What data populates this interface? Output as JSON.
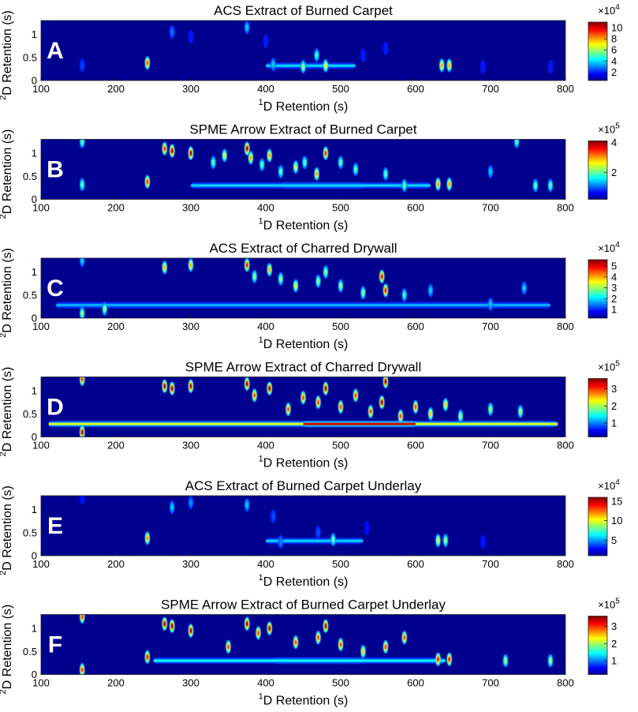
{
  "colors": {
    "background": "#00008f",
    "colormap": "jet",
    "frame": "#222222"
  },
  "chart_data": [
    {
      "type": "heatmap",
      "letter": "A",
      "title": "ACS Extract of Burned Carpet",
      "xlabel": "D Retention (s)",
      "xlabel_superscript": "1",
      "ylabel": "D Retention (s)",
      "ylabel_superscript": "2",
      "xlim": [
        100,
        800
      ],
      "ylim": [
        0,
        1.3
      ],
      "xticks": [
        "100",
        "200",
        "300",
        "400",
        "500",
        "600",
        "700",
        "800"
      ],
      "yticks": [
        "0",
        "0.5",
        "1"
      ],
      "colorbar": {
        "exponent_base": "×10",
        "exponent": "4",
        "ticks": [
          "2",
          "4",
          "6",
          "8",
          "10"
        ],
        "range": [
          0.5,
          11
        ]
      },
      "peaks": [
        {
          "x": 155,
          "y": 0.33,
          "v": 2.5
        },
        {
          "x": 242,
          "y": 0.38,
          "v": 9
        },
        {
          "x": 275,
          "y": 1.05,
          "v": 3
        },
        {
          "x": 300,
          "y": 0.95,
          "v": 2
        },
        {
          "x": 375,
          "y": 1.15,
          "v": 4
        },
        {
          "x": 400,
          "y": 0.85,
          "v": 2
        },
        {
          "x": 410,
          "y": 0.35,
          "v": 4
        },
        {
          "x": 450,
          "y": 0.3,
          "v": 6
        },
        {
          "x": 468,
          "y": 0.55,
          "v": 5
        },
        {
          "x": 480,
          "y": 0.32,
          "v": 7
        },
        {
          "x": 530,
          "y": 0.55,
          "v": 2
        },
        {
          "x": 560,
          "y": 0.7,
          "v": 2
        },
        {
          "x": 635,
          "y": 0.33,
          "v": 8
        },
        {
          "x": 645,
          "y": 0.33,
          "v": 8
        },
        {
          "x": 690,
          "y": 0.3,
          "v": 2
        },
        {
          "x": 780,
          "y": 0.3,
          "v": 2
        }
      ],
      "ridges": [
        {
          "x1": 400,
          "x2": 520,
          "y": 0.32,
          "v": 4
        }
      ]
    },
    {
      "type": "heatmap",
      "letter": "B",
      "title": "SPME Arrow Extract of Burned Carpet",
      "xlabel": "D Retention (s)",
      "xlabel_superscript": "1",
      "ylabel": "D Retention (s)",
      "ylabel_superscript": "2",
      "xlim": [
        100,
        800
      ],
      "ylim": [
        0,
        1.3
      ],
      "xticks": [
        "100",
        "200",
        "300",
        "400",
        "500",
        "600",
        "700",
        "800"
      ],
      "yticks": [
        "0",
        "0.5",
        "1"
      ],
      "colorbar": {
        "exponent_base": "×10",
        "exponent": "5",
        "ticks": [
          "2",
          "4"
        ],
        "range": [
          0.2,
          4.1
        ]
      },
      "peaks": [
        {
          "x": 155,
          "y": 0.32,
          "v": 2
        },
        {
          "x": 155,
          "y": 1.25,
          "v": 2
        },
        {
          "x": 242,
          "y": 0.38,
          "v": 3.5
        },
        {
          "x": 265,
          "y": 1.1,
          "v": 3.5
        },
        {
          "x": 275,
          "y": 1.05,
          "v": 4
        },
        {
          "x": 300,
          "y": 1.0,
          "v": 4
        },
        {
          "x": 330,
          "y": 0.8,
          "v": 2
        },
        {
          "x": 345,
          "y": 0.95,
          "v": 2.5
        },
        {
          "x": 375,
          "y": 1.1,
          "v": 4
        },
        {
          "x": 380,
          "y": 0.9,
          "v": 3
        },
        {
          "x": 395,
          "y": 0.75,
          "v": 2
        },
        {
          "x": 405,
          "y": 0.95,
          "v": 3
        },
        {
          "x": 420,
          "y": 0.6,
          "v": 2
        },
        {
          "x": 440,
          "y": 0.7,
          "v": 2.5
        },
        {
          "x": 452,
          "y": 0.8,
          "v": 2
        },
        {
          "x": 468,
          "y": 0.55,
          "v": 3
        },
        {
          "x": 480,
          "y": 1.0,
          "v": 3.5
        },
        {
          "x": 500,
          "y": 0.8,
          "v": 2
        },
        {
          "x": 520,
          "y": 0.65,
          "v": 2
        },
        {
          "x": 560,
          "y": 0.55,
          "v": 2
        },
        {
          "x": 585,
          "y": 0.3,
          "v": 2
        },
        {
          "x": 630,
          "y": 0.33,
          "v": 3
        },
        {
          "x": 645,
          "y": 0.33,
          "v": 3
        },
        {
          "x": 700,
          "y": 0.6,
          "v": 1.5
        },
        {
          "x": 735,
          "y": 1.25,
          "v": 2
        },
        {
          "x": 760,
          "y": 0.3,
          "v": 2
        },
        {
          "x": 780,
          "y": 0.3,
          "v": 2
        }
      ],
      "ridges": [
        {
          "x1": 420,
          "x2": 530,
          "y": 0.3,
          "v": 4
        },
        {
          "x1": 300,
          "x2": 620,
          "y": 0.3,
          "v": 1.5
        }
      ]
    },
    {
      "type": "heatmap",
      "letter": "C",
      "title": "ACS Extract of Charred Drywall",
      "xlabel": "D Retention (s)",
      "xlabel_superscript": "1",
      "ylabel": "D Retention (s)",
      "ylabel_superscript": "2",
      "xlim": [
        100,
        800
      ],
      "ylim": [
        0,
        1.3
      ],
      "xticks": [
        "100",
        "200",
        "300",
        "400",
        "500",
        "600",
        "700",
        "800"
      ],
      "yticks": [
        "0",
        "0.5",
        "1"
      ],
      "colorbar": {
        "exponent_base": "×10",
        "exponent": "4",
        "ticks": [
          "1",
          "2",
          "3",
          "4",
          "5"
        ],
        "range": [
          0.2,
          5.6
        ]
      },
      "peaks": [
        {
          "x": 155,
          "y": 0.1,
          "v": 3
        },
        {
          "x": 155,
          "y": 1.25,
          "v": 2
        },
        {
          "x": 185,
          "y": 0.2,
          "v": 3
        },
        {
          "x": 265,
          "y": 1.1,
          "v": 4
        },
        {
          "x": 300,
          "y": 1.15,
          "v": 4
        },
        {
          "x": 375,
          "y": 1.15,
          "v": 5
        },
        {
          "x": 385,
          "y": 0.9,
          "v": 3
        },
        {
          "x": 405,
          "y": 1.05,
          "v": 4
        },
        {
          "x": 420,
          "y": 0.85,
          "v": 3
        },
        {
          "x": 440,
          "y": 0.7,
          "v": 3.5
        },
        {
          "x": 470,
          "y": 0.8,
          "v": 3
        },
        {
          "x": 480,
          "y": 1.0,
          "v": 3
        },
        {
          "x": 500,
          "y": 0.7,
          "v": 3
        },
        {
          "x": 530,
          "y": 0.55,
          "v": 3
        },
        {
          "x": 555,
          "y": 0.9,
          "v": 5
        },
        {
          "x": 560,
          "y": 0.6,
          "v": 5
        },
        {
          "x": 585,
          "y": 0.5,
          "v": 2.5
        },
        {
          "x": 620,
          "y": 0.6,
          "v": 2
        },
        {
          "x": 700,
          "y": 0.3,
          "v": 2
        },
        {
          "x": 745,
          "y": 0.65,
          "v": 2
        }
      ],
      "ridges": [
        {
          "x1": 120,
          "x2": 780,
          "y": 0.28,
          "v": 1.8
        }
      ]
    },
    {
      "type": "heatmap",
      "letter": "D",
      "title": "SPME Arrow Extract of Charred Drywall",
      "xlabel": "D Retention (s)",
      "xlabel_superscript": "1",
      "ylabel": "D Retention (s)",
      "ylabel_superscript": "2",
      "xlim": [
        100,
        800
      ],
      "ylim": [
        0,
        1.3
      ],
      "xticks": [
        "100",
        "200",
        "300",
        "400",
        "500",
        "600",
        "700",
        "800"
      ],
      "yticks": [
        "0",
        "0.5",
        "1"
      ],
      "colorbar": {
        "exponent_base": "×10",
        "exponent": "5",
        "ticks": [
          "1",
          "2",
          "3"
        ],
        "range": [
          0.2,
          3.6
        ]
      },
      "peaks": [
        {
          "x": 155,
          "y": 0.1,
          "v": 3.5
        },
        {
          "x": 155,
          "y": 1.25,
          "v": 3
        },
        {
          "x": 265,
          "y": 1.1,
          "v": 3.5
        },
        {
          "x": 275,
          "y": 1.05,
          "v": 3.5
        },
        {
          "x": 300,
          "y": 1.1,
          "v": 3.5
        },
        {
          "x": 375,
          "y": 1.15,
          "v": 3.5
        },
        {
          "x": 385,
          "y": 0.9,
          "v": 3
        },
        {
          "x": 405,
          "y": 1.05,
          "v": 3.5
        },
        {
          "x": 430,
          "y": 0.6,
          "v": 3
        },
        {
          "x": 450,
          "y": 0.85,
          "v": 3
        },
        {
          "x": 470,
          "y": 0.75,
          "v": 3
        },
        {
          "x": 480,
          "y": 1.05,
          "v": 3.5
        },
        {
          "x": 500,
          "y": 0.65,
          "v": 3
        },
        {
          "x": 520,
          "y": 0.9,
          "v": 3
        },
        {
          "x": 540,
          "y": 0.55,
          "v": 3
        },
        {
          "x": 555,
          "y": 0.75,
          "v": 3.5
        },
        {
          "x": 560,
          "y": 1.2,
          "v": 3.5
        },
        {
          "x": 580,
          "y": 0.45,
          "v": 3
        },
        {
          "x": 600,
          "y": 0.65,
          "v": 3
        },
        {
          "x": 620,
          "y": 0.5,
          "v": 2.5
        },
        {
          "x": 640,
          "y": 0.7,
          "v": 2.5
        },
        {
          "x": 660,
          "y": 0.45,
          "v": 2
        },
        {
          "x": 700,
          "y": 0.6,
          "v": 2
        },
        {
          "x": 740,
          "y": 0.55,
          "v": 2
        }
      ],
      "ridges": [
        {
          "x1": 110,
          "x2": 790,
          "y": 0.28,
          "v": 2.2
        },
        {
          "x1": 450,
          "x2": 600,
          "y": 0.28,
          "v": 3.3
        }
      ]
    },
    {
      "type": "heatmap",
      "letter": "E",
      "title": "ACS Extract of Burned Carpet Underlay",
      "xlabel": "D Retention (s)",
      "xlabel_superscript": "1",
      "ylabel": "D Retention (s)",
      "ylabel_superscript": "2",
      "xlim": [
        100,
        800
      ],
      "ylim": [
        0,
        1.3
      ],
      "xticks": [
        "100",
        "200",
        "300",
        "400",
        "500",
        "600",
        "700",
        "800"
      ],
      "yticks": [
        "0",
        "0.5",
        "1"
      ],
      "colorbar": {
        "exponent_base": "×10",
        "exponent": "4",
        "ticks": [
          "5",
          "10",
          "15"
        ],
        "range": [
          1,
          16
        ]
      },
      "peaks": [
        {
          "x": 155,
          "y": 1.25,
          "v": 3
        },
        {
          "x": 242,
          "y": 0.38,
          "v": 12
        },
        {
          "x": 275,
          "y": 1.05,
          "v": 6
        },
        {
          "x": 300,
          "y": 1.15,
          "v": 5
        },
        {
          "x": 375,
          "y": 1.1,
          "v": 6
        },
        {
          "x": 410,
          "y": 0.85,
          "v": 4
        },
        {
          "x": 420,
          "y": 0.3,
          "v": 5
        },
        {
          "x": 470,
          "y": 0.5,
          "v": 4
        },
        {
          "x": 490,
          "y": 0.35,
          "v": 8
        },
        {
          "x": 535,
          "y": 0.6,
          "v": 3
        },
        {
          "x": 630,
          "y": 0.33,
          "v": 10
        },
        {
          "x": 640,
          "y": 0.33,
          "v": 9
        },
        {
          "x": 690,
          "y": 0.3,
          "v": 3
        }
      ],
      "ridges": [
        {
          "x1": 400,
          "x2": 530,
          "y": 0.32,
          "v": 6
        }
      ]
    },
    {
      "type": "heatmap",
      "letter": "F",
      "title": "SPME Arrow Extract of Burned Carpet Underlay",
      "xlabel": "D Retention (s)",
      "xlabel_superscript": "1",
      "ylabel": "D Retention (s)",
      "ylabel_superscript": "2",
      "xlim": [
        100,
        800
      ],
      "ylim": [
        0,
        1.3
      ],
      "xticks": [
        "100",
        "200",
        "300",
        "400",
        "500",
        "600",
        "700",
        "800"
      ],
      "yticks": [
        "0",
        "0.5",
        "1"
      ],
      "colorbar": {
        "exponent_base": "×10",
        "exponent": "5",
        "ticks": [
          "1",
          "2",
          "3"
        ],
        "range": [
          0.2,
          3.6
        ]
      },
      "peaks": [
        {
          "x": 155,
          "y": 0.1,
          "v": 3
        },
        {
          "x": 155,
          "y": 1.25,
          "v": 3
        },
        {
          "x": 242,
          "y": 0.38,
          "v": 3.2
        },
        {
          "x": 265,
          "y": 1.1,
          "v": 3.5
        },
        {
          "x": 275,
          "y": 1.05,
          "v": 3.5
        },
        {
          "x": 300,
          "y": 0.95,
          "v": 3.5
        },
        {
          "x": 350,
          "y": 0.6,
          "v": 3
        },
        {
          "x": 375,
          "y": 1.1,
          "v": 3.5
        },
        {
          "x": 390,
          "y": 0.9,
          "v": 3
        },
        {
          "x": 405,
          "y": 1.0,
          "v": 3.5
        },
        {
          "x": 440,
          "y": 0.7,
          "v": 3
        },
        {
          "x": 470,
          "y": 0.8,
          "v": 3
        },
        {
          "x": 480,
          "y": 1.05,
          "v": 3.5
        },
        {
          "x": 500,
          "y": 0.65,
          "v": 3
        },
        {
          "x": 530,
          "y": 0.5,
          "v": 2.5
        },
        {
          "x": 560,
          "y": 0.6,
          "v": 3
        },
        {
          "x": 585,
          "y": 0.8,
          "v": 3
        },
        {
          "x": 630,
          "y": 0.33,
          "v": 3.2
        },
        {
          "x": 645,
          "y": 0.33,
          "v": 3.2
        },
        {
          "x": 720,
          "y": 0.3,
          "v": 2
        },
        {
          "x": 780,
          "y": 0.3,
          "v": 2
        }
      ],
      "ridges": [
        {
          "x1": 410,
          "x2": 530,
          "y": 0.3,
          "v": 3.4
        },
        {
          "x1": 250,
          "x2": 640,
          "y": 0.3,
          "v": 1.5
        }
      ]
    }
  ]
}
